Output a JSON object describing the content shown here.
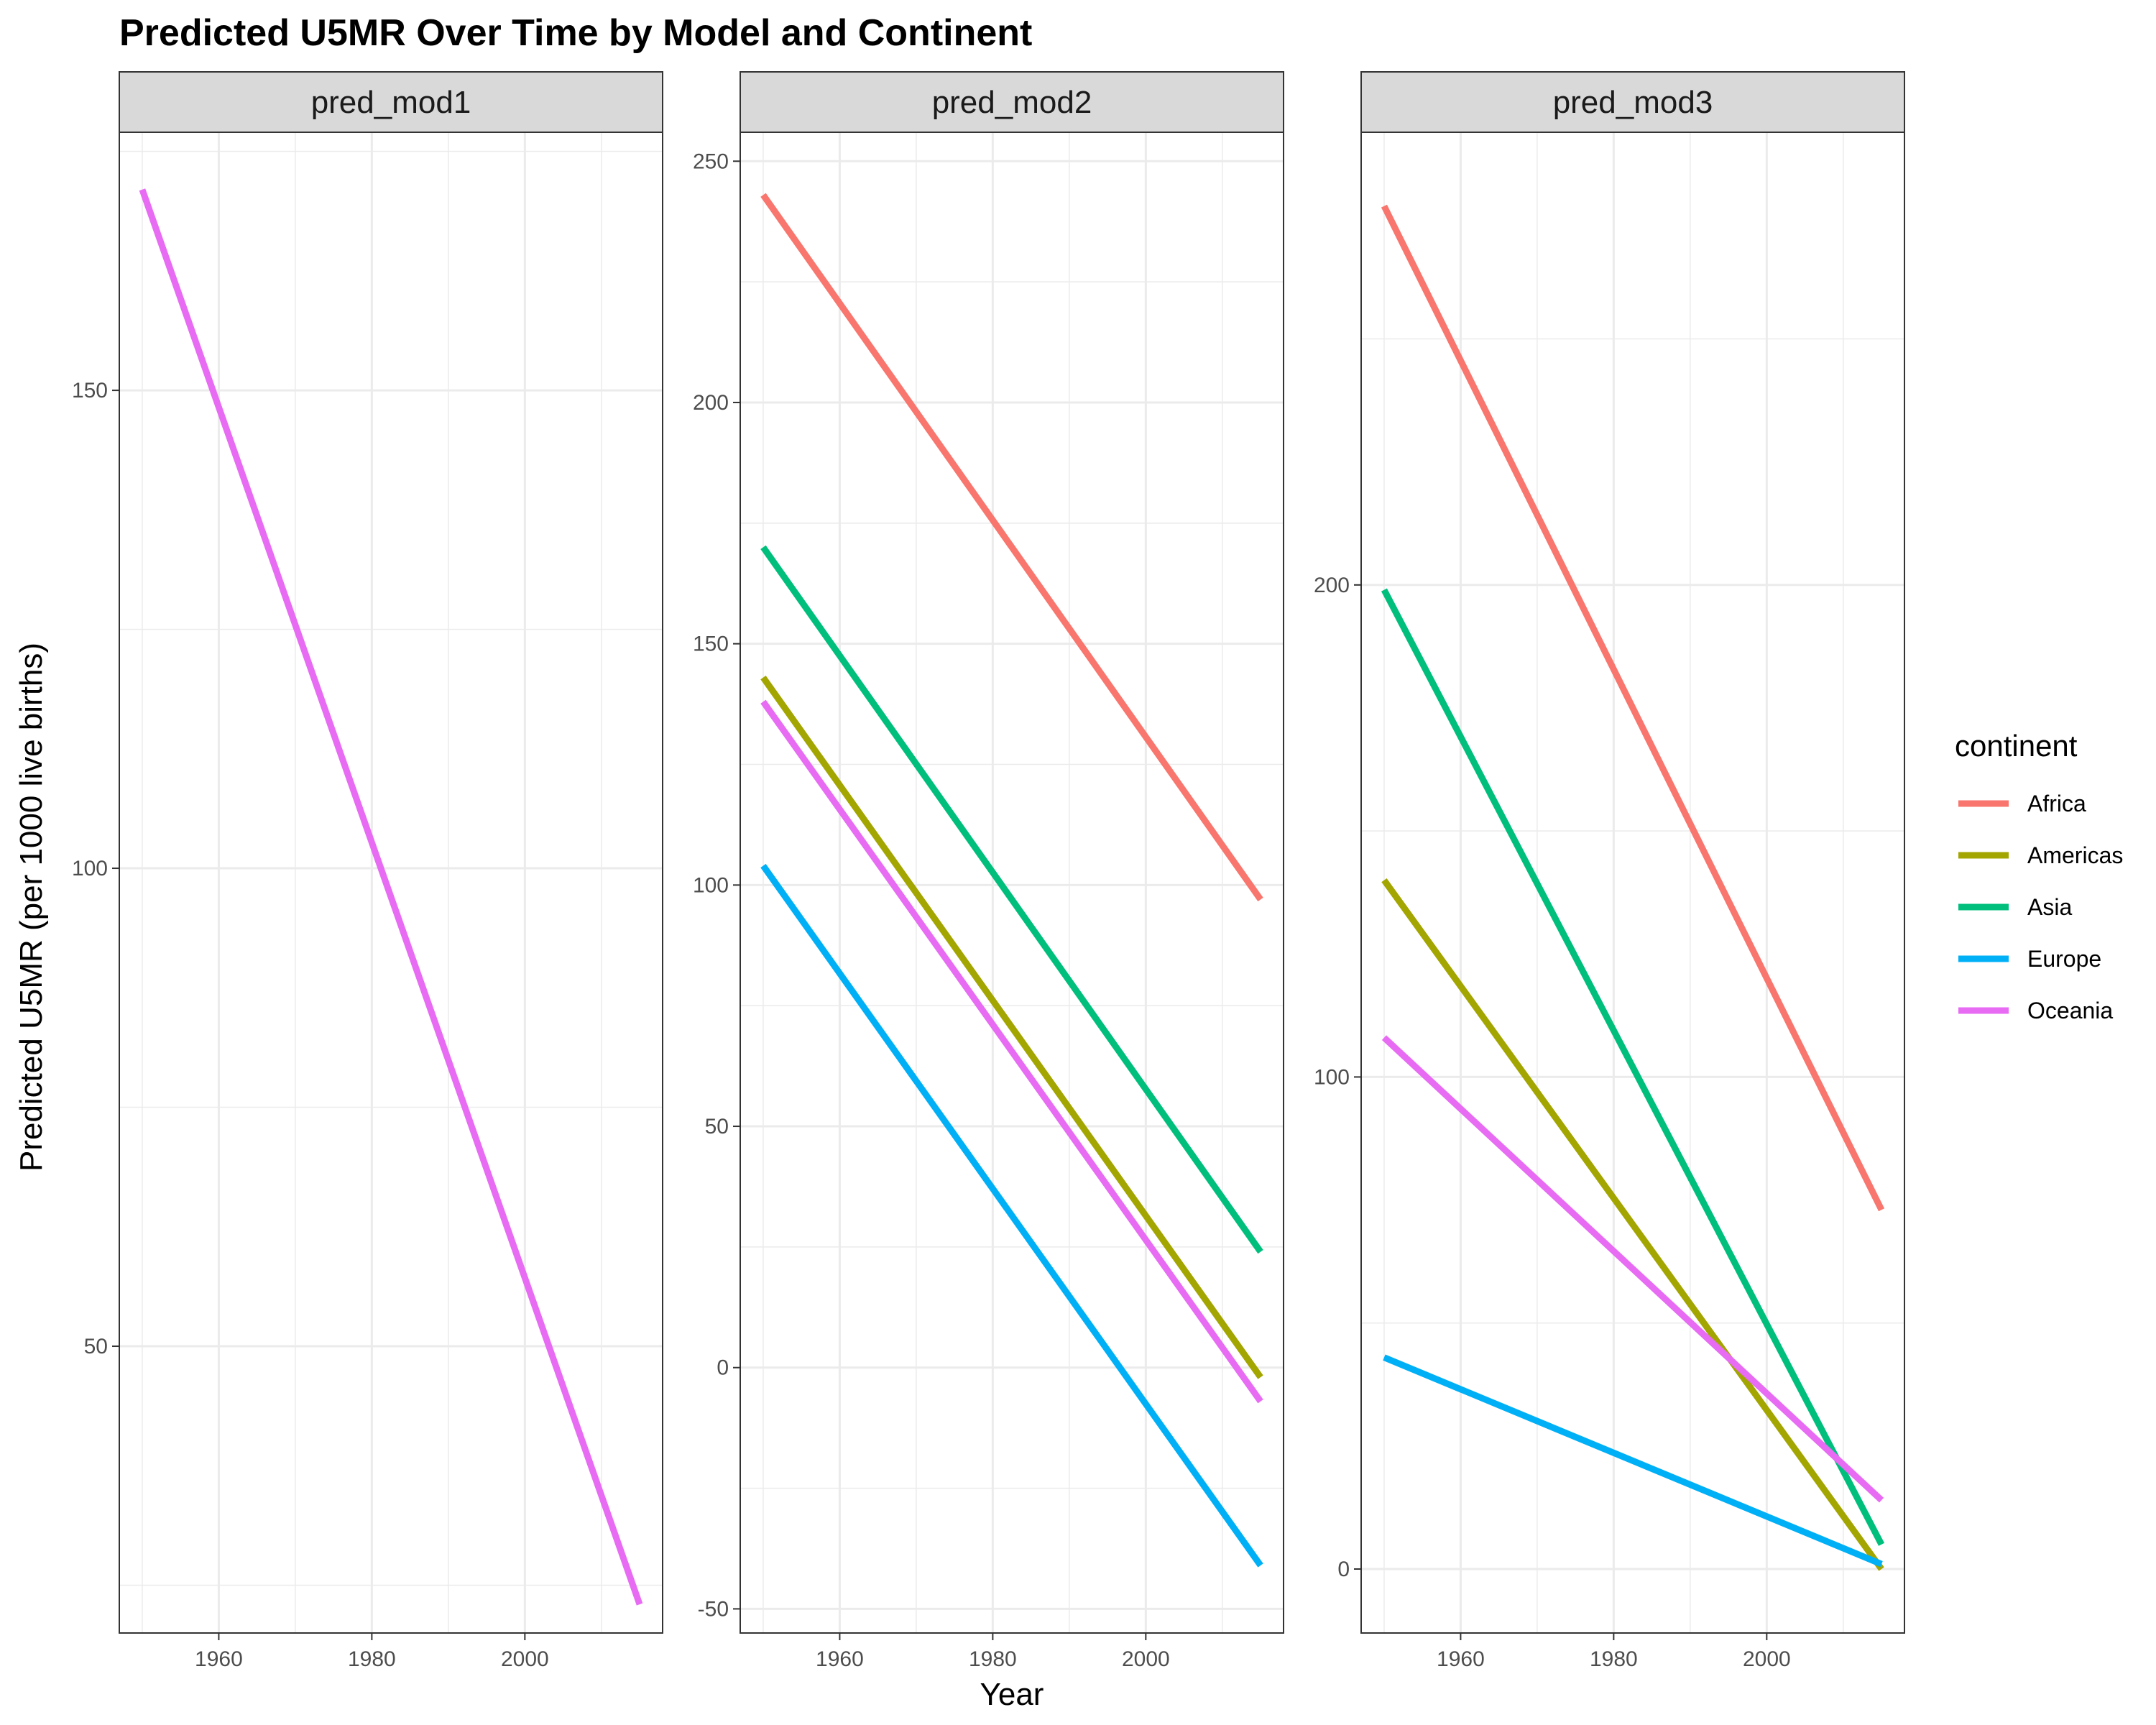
{
  "chart_data": {
    "type": "line",
    "title": "Predicted U5MR Over Time by Model and Continent",
    "xlabel": "Year",
    "ylabel": "Predicted U5MR (per 1000 live births)",
    "legend": {
      "title": "continent",
      "position": "right",
      "entries": [
        "Africa",
        "Americas",
        "Asia",
        "Europe",
        "Oceania"
      ]
    },
    "colors": {
      "Africa": "#F8766D",
      "Americas": "#A3A500",
      "Asia": "#00BF7D",
      "Europe": "#00B0F6",
      "Oceania": "#E76BF3"
    },
    "grid": true,
    "x_ticks": [
      "1960",
      "1980",
      "2000"
    ],
    "panels": [
      {
        "strip": "pred_mod1",
        "xlim": [
          1947,
          2018
        ],
        "ylim": [
          20,
          177
        ],
        "y_ticks": [
          "50",
          "100",
          "150"
        ],
        "series": [
          {
            "name": "Oceania",
            "x": [
              1950,
              2015
            ],
            "y": [
              171,
              23
            ]
          }
        ]
      },
      {
        "strip": "pred_mod2",
        "xlim": [
          1947,
          2018
        ],
        "ylim": [
          -55,
          256
        ],
        "y_ticks": [
          "-50",
          "0",
          "50",
          "100",
          "150",
          "200",
          "250"
        ],
        "series": [
          {
            "name": "Africa",
            "x": [
              1950,
              2015
            ],
            "y": [
              243,
              97
            ]
          },
          {
            "name": "Americas",
            "x": [
              1950,
              2015
            ],
            "y": [
              143,
              -2
            ]
          },
          {
            "name": "Asia",
            "x": [
              1950,
              2015
            ],
            "y": [
              170,
              24
            ]
          },
          {
            "name": "Europe",
            "x": [
              1950,
              2015
            ],
            "y": [
              104,
              -41
            ]
          },
          {
            "name": "Oceania",
            "x": [
              1950,
              2015
            ],
            "y": [
              138,
              -7
            ]
          }
        ]
      },
      {
        "strip": "pred_mod3",
        "xlim": [
          1947,
          2018
        ],
        "ylim": [
          -13,
          292
        ],
        "y_ticks": [
          "0",
          "100",
          "200"
        ],
        "series": [
          {
            "name": "Africa",
            "x": [
              1950,
              2015
            ],
            "y": [
              277,
              73
            ]
          },
          {
            "name": "Americas",
            "x": [
              1950,
              2015
            ],
            "y": [
              140,
              0
            ]
          },
          {
            "name": "Asia",
            "x": [
              1950,
              2015
            ],
            "y": [
              199,
              5
            ]
          },
          {
            "name": "Europe",
            "x": [
              1950,
              2015
            ],
            "y": [
              43,
              1
            ]
          },
          {
            "name": "Oceania",
            "x": [
              1950,
              2015
            ],
            "y": [
              108,
              14
            ]
          }
        ]
      }
    ]
  }
}
